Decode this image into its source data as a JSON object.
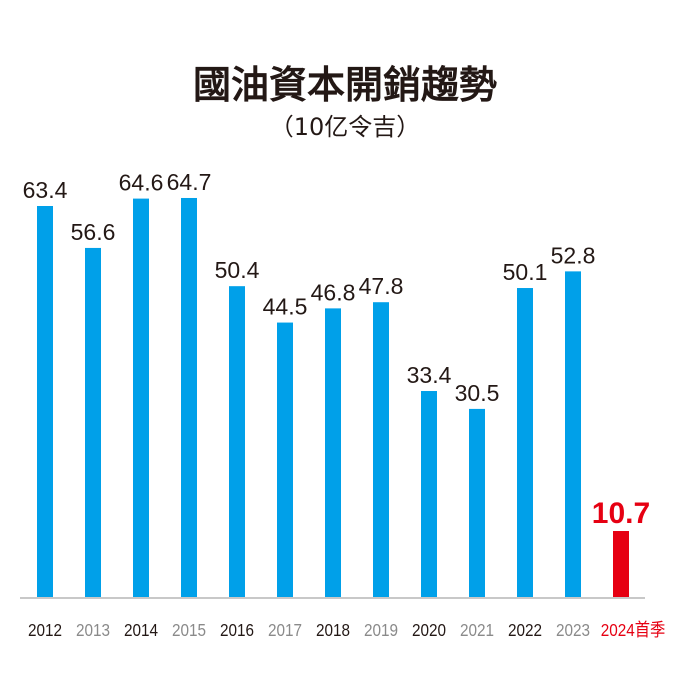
{
  "chart_data": {
    "type": "bar",
    "title": "國油資本開銷趨勢",
    "subtitle": "（10亿令吉）",
    "categories": [
      "2012",
      "2013",
      "2014",
      "2015",
      "2016",
      "2017",
      "2018",
      "2019",
      "2020",
      "2021",
      "2022",
      "2023",
      "2024首季"
    ],
    "values": [
      63.4,
      56.6,
      64.6,
      64.7,
      50.4,
      44.5,
      46.8,
      47.8,
      33.4,
      30.5,
      50.1,
      52.8,
      10.7
    ],
    "value_labels": [
      "63.4",
      "56.6",
      "64.6",
      "64.7",
      "50.4",
      "44.5",
      "46.8",
      "47.8",
      "33.4",
      "30.5",
      "50.1",
      "52.8",
      "10.7"
    ],
    "xlabel": "",
    "ylabel": "",
    "ylim": [
      0,
      70
    ],
    "grid": false,
    "colors": {
      "bar": "#00a0e9",
      "highlight_bar": "#e60012",
      "tick_dark": "#231815",
      "tick_gray": "#8a8a8a",
      "highlight_text": "#e60012",
      "baseline": "#c8c8c8"
    },
    "highlight_index": 12
  }
}
